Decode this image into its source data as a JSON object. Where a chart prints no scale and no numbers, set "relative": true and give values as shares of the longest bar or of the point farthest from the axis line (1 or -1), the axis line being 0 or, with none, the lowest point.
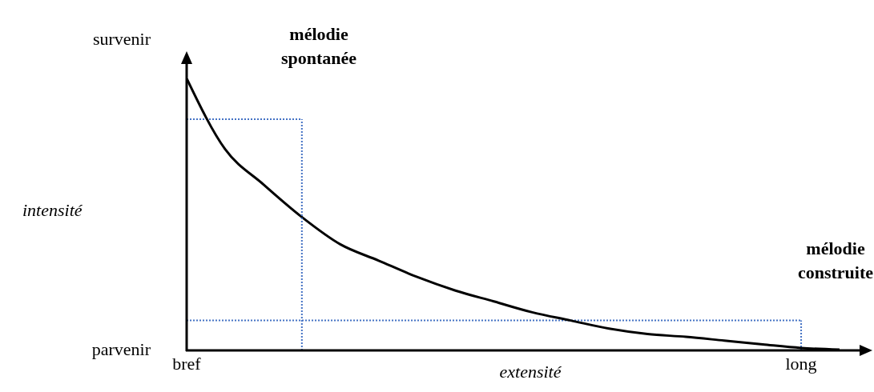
{
  "chart_data": {
    "type": "line",
    "relative": true,
    "xlabel": "extensité",
    "categories": [
      "bref",
      null,
      null,
      null,
      null,
      null,
      null,
      null,
      null,
      null,
      null,
      null,
      null,
      null,
      null,
      null,
      "long",
      null
    ],
    "values": [
      1,
      0.74,
      0.61,
      0.49,
      0.39,
      0.33,
      0.27,
      0.22,
      0.18,
      0.14,
      0.11,
      0.08,
      0.06,
      0.05,
      0.036,
      0.022,
      0.009,
      0.003
    ],
    "color": "#000000",
    "marker": "none",
    "line_style": "solid",
    "grid": false,
    "legend": false,
    "ref_lines": [
      {
        "axis": "y",
        "value": 0.85,
        "color": "#4472c4",
        "line_style": "dotted"
      },
      {
        "axis": "x",
        "value": "long",
        "color": "#4472c4",
        "line_style": "dotted"
      },
      {
        "axis": "y",
        "value": 0.11,
        "color": "#4472c4",
        "line_style": "dotted"
      }
    ],
    "annotations": [
      "survenir",
      "intensité",
      "parvenir",
      "mélodie spontanée",
      "mélodie construite"
    ]
  }
}
